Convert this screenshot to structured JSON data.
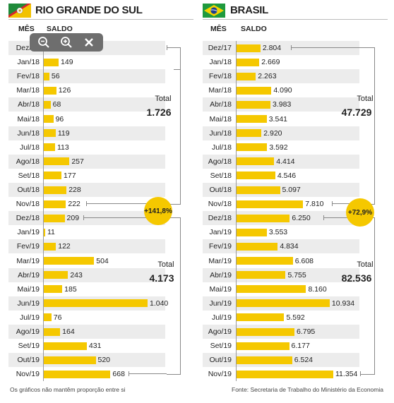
{
  "toolbar": {
    "icons": [
      "zoom-out-icon",
      "zoom-in-icon",
      "close-icon"
    ]
  },
  "colors": {
    "bar": "#f5c800",
    "stripe": "#ececec",
    "bracket": "#888888"
  },
  "footer": {
    "left": "Os gráficos não mantêm proporção entre si",
    "right": "Fonte: Secretaria de Trabalho do Ministério da Economia"
  },
  "chart_data": [
    {
      "type": "bar",
      "title": "RIO GRANDE DO SUL",
      "flag": "rio-grande-do-sul-flag",
      "column_headers": [
        "MÊS",
        "SALDO"
      ],
      "categories": [
        "Dez/17",
        "Jan/18",
        "Fev/18",
        "Mar/18",
        "Abr/18",
        "Mai/18",
        "Jun/18",
        "Jul/18",
        "Ago/18",
        "Set/18",
        "Out/18",
        "Nov/18",
        "Dez/18",
        "Jan/19",
        "Fev/19",
        "Mar/19",
        "Abr/19",
        "Mai/19",
        "Jun/19",
        "Jul/19",
        "Ago/19",
        "Set/19",
        "Out/19",
        "Nov/19"
      ],
      "values": [
        null,
        149,
        56,
        126,
        68,
        96,
        119,
        113,
        257,
        177,
        228,
        222,
        209,
        11,
        122,
        504,
        243,
        185,
        1040,
        76,
        164,
        431,
        520,
        668
      ],
      "labels": [
        "",
        "149",
        "56",
        "126",
        "68",
        "96",
        "119",
        "113",
        "257",
        "177",
        "228",
        "222",
        "209",
        "11",
        "122",
        "504",
        "243",
        "185",
        "1.040",
        "76",
        "164",
        "431",
        "520",
        "668"
      ],
      "total_label": "Total",
      "total_first_period": "1.726",
      "total_second_period": "4.173",
      "growth": "+141,8%"
    },
    {
      "type": "bar",
      "title": "BRASIL",
      "flag": "brazil-flag",
      "column_headers": [
        "MÊS",
        "SALDO"
      ],
      "categories": [
        "Dez/17",
        "Jan/18",
        "Fev/18",
        "Mar/18",
        "Abr/18",
        "Mai/18",
        "Jun/18",
        "Jul/18",
        "Ago/18",
        "Set/18",
        "Out/18",
        "Nov/18",
        "Dez/18",
        "Jan/19",
        "Fev/19",
        "Mar/19",
        "Abr/19",
        "Mai/19",
        "Jun/19",
        "Jul/19",
        "Ago/19",
        "Set/19",
        "Out/19",
        "Nov/19"
      ],
      "values": [
        2804,
        2669,
        2263,
        4090,
        3983,
        3541,
        2920,
        3592,
        4414,
        4546,
        5097,
        7810,
        6250,
        3553,
        4834,
        6608,
        5755,
        8160,
        10934,
        5592,
        6795,
        6177,
        6524,
        11354
      ],
      "labels": [
        "2.804",
        "2.669",
        "2.263",
        "4.090",
        "3.983",
        "3.541",
        "2.920",
        "3.592",
        "4.414",
        "4.546",
        "5.097",
        "7.810",
        "6.250",
        "3.553",
        "4.834",
        "6.608",
        "5.755",
        "8.160",
        "10.934",
        "5.592",
        "6.795",
        "6.177",
        "6.524",
        "11.354"
      ],
      "total_label": "Total",
      "total_first_period": "47.729",
      "total_second_period": "82.536",
      "growth": "+72,9%"
    }
  ]
}
